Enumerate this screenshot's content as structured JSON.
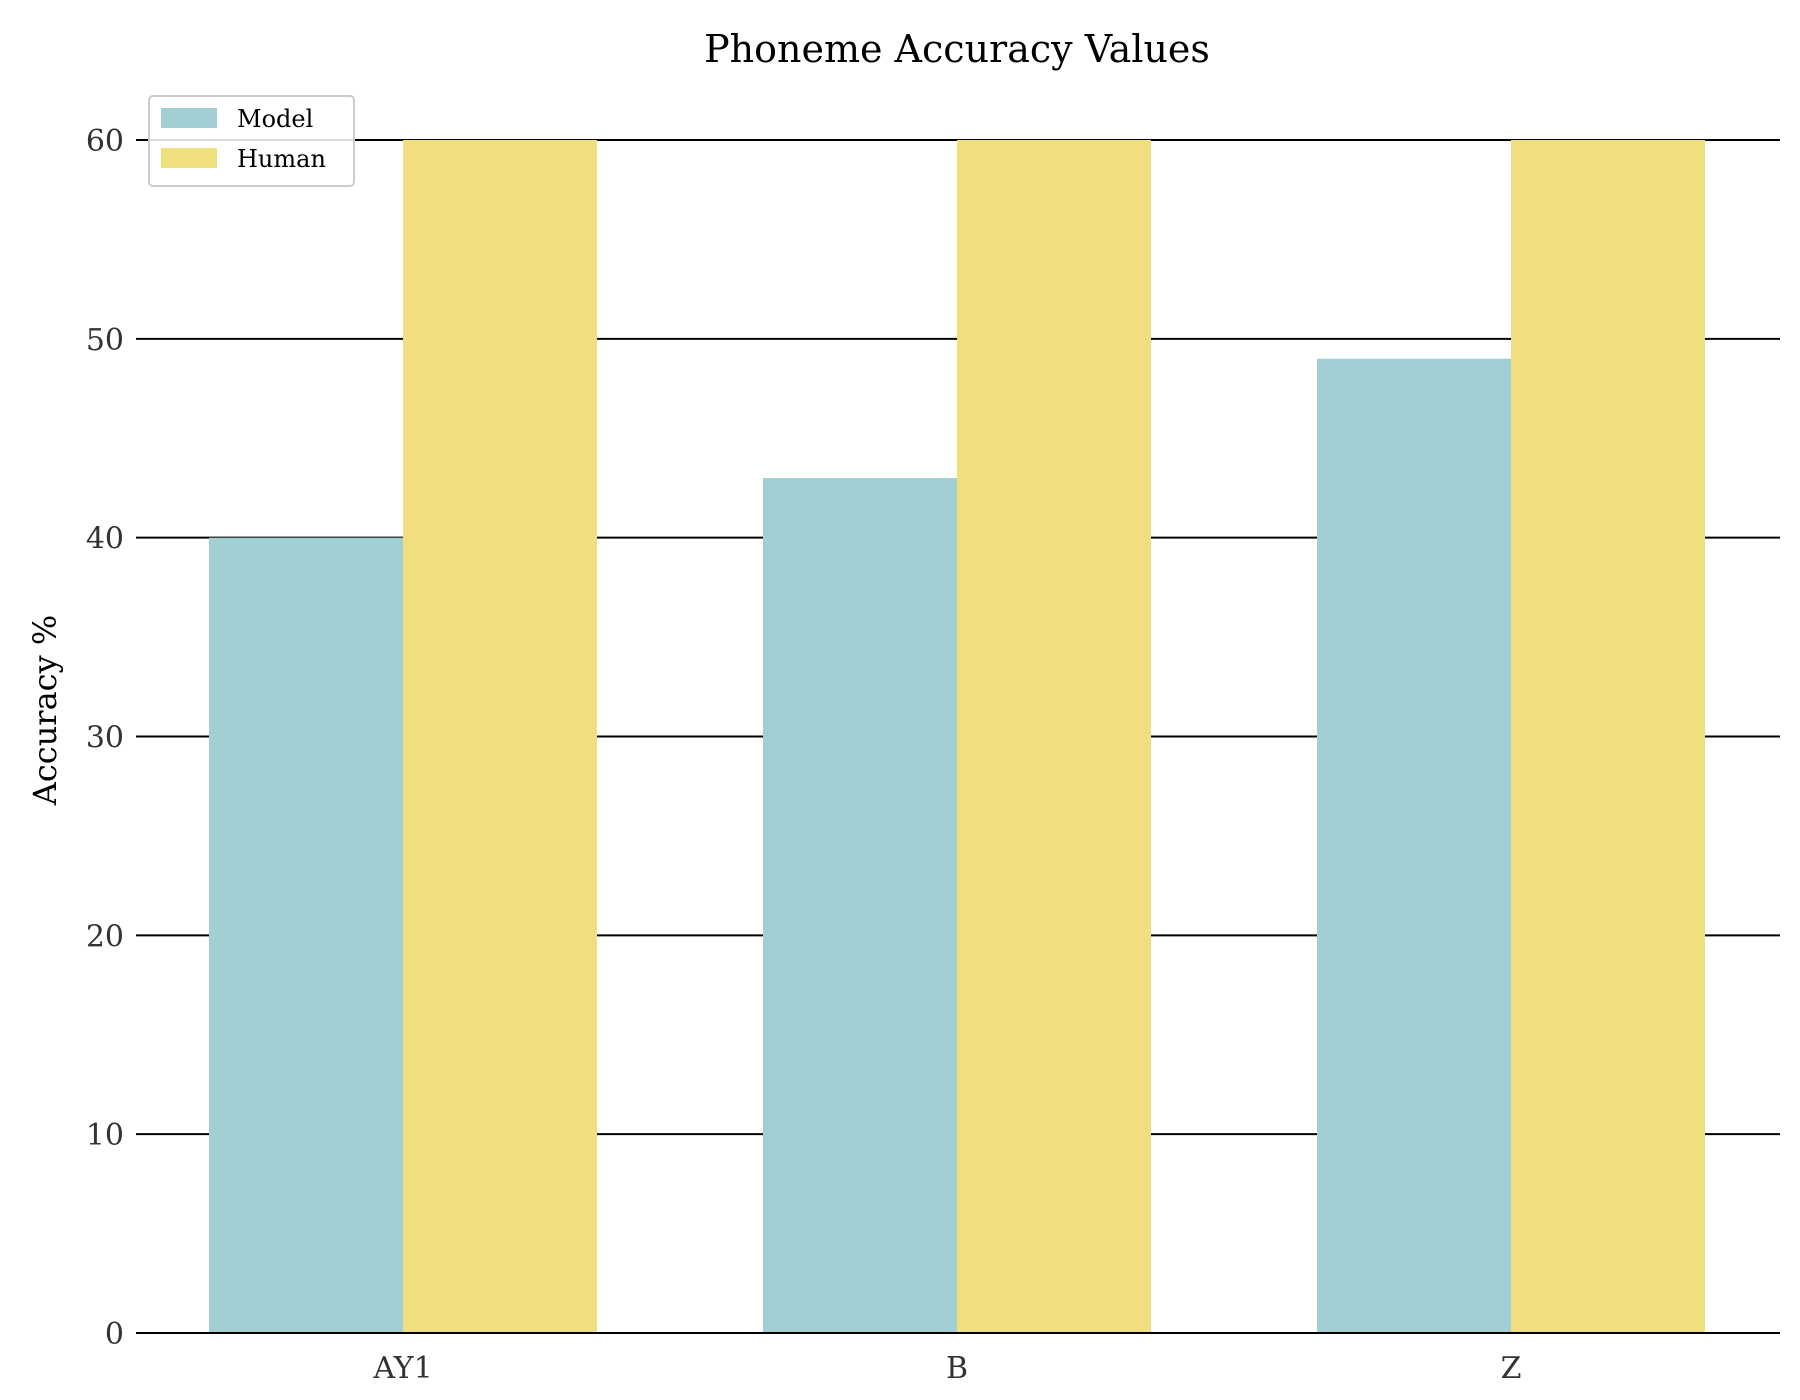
{
  "chart_data": {
    "type": "bar",
    "title": "Phoneme Accuracy Values",
    "xlabel": "",
    "ylabel": "Accuracy %",
    "categories": [
      "AY1",
      "B",
      "Z"
    ],
    "series": [
      {
        "name": "Model",
        "values": [
          40,
          43,
          49
        ],
        "color": "#a1cfd3"
      },
      {
        "name": "Human",
        "values": [
          60,
          60,
          60
        ],
        "color": "#f1de7f"
      }
    ],
    "ylim": [
      0,
      60
    ],
    "yticks": [
      0,
      10,
      20,
      30,
      40,
      50,
      60
    ],
    "grid": true,
    "legend_position": "top-left"
  }
}
